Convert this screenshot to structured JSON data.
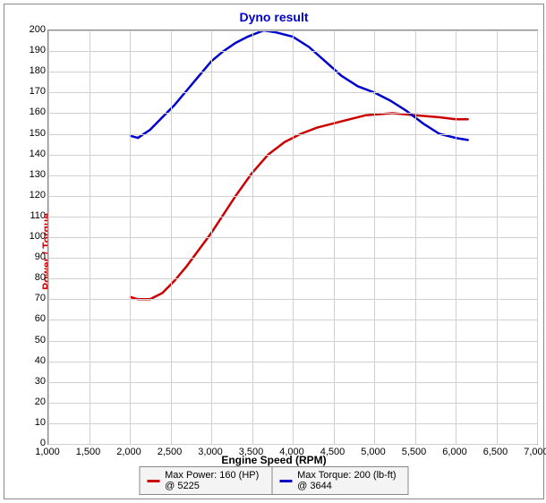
{
  "chart": {
    "type": "line",
    "title": "Dyno result",
    "title_color": "#0000cc",
    "title_fontsize": 14,
    "xlabel": "Engine Speed (RPM)",
    "xlabel_color": "#000000",
    "ylabel": "Power / Torque",
    "ylabel_color": "#cc0000",
    "label_fontsize": 12,
    "tick_fontsize": 11,
    "background_color": "#ffffff",
    "grid_color": "#d0d0d0",
    "border_color": "#888888",
    "xlim": [
      1000,
      7000
    ],
    "ylim": [
      0,
      200
    ],
    "xtick_step": 500,
    "ytick_step": 10,
    "xticks": [
      "1,000",
      "1,500",
      "2,000",
      "2,500",
      "3,000",
      "3,500",
      "4,000",
      "4,500",
      "5,000",
      "5,500",
      "6,000",
      "6,500",
      "7,000"
    ],
    "yticks": [
      "0",
      "10",
      "20",
      "30",
      "40",
      "50",
      "60",
      "70",
      "80",
      "90",
      "100",
      "110",
      "120",
      "130",
      "140",
      "150",
      "160",
      "170",
      "180",
      "190",
      "200"
    ],
    "line_width": 2.5,
    "series": [
      {
        "name": "power",
        "label": "Max Power: 160 (HP) @ 5225",
        "color": "#cc0000",
        "points": [
          [
            2010,
            71
          ],
          [
            2100,
            70
          ],
          [
            2250,
            70
          ],
          [
            2400,
            73
          ],
          [
            2550,
            79
          ],
          [
            2700,
            86
          ],
          [
            2850,
            94
          ],
          [
            3000,
            102
          ],
          [
            3150,
            111
          ],
          [
            3300,
            120
          ],
          [
            3500,
            131
          ],
          [
            3700,
            140
          ],
          [
            3900,
            146
          ],
          [
            4100,
            150
          ],
          [
            4300,
            153
          ],
          [
            4600,
            156
          ],
          [
            4900,
            159
          ],
          [
            5225,
            160
          ],
          [
            5500,
            159
          ],
          [
            5800,
            158
          ],
          [
            6000,
            157
          ],
          [
            6150,
            157
          ]
        ]
      },
      {
        "name": "torque",
        "label": "Max Torque: 200 (lb-ft) @ 3644",
        "color": "#0000cc",
        "points": [
          [
            2010,
            149
          ],
          [
            2100,
            148
          ],
          [
            2250,
            152
          ],
          [
            2400,
            158
          ],
          [
            2550,
            164
          ],
          [
            2700,
            171
          ],
          [
            2850,
            178
          ],
          [
            3000,
            185
          ],
          [
            3150,
            190
          ],
          [
            3300,
            194
          ],
          [
            3450,
            197
          ],
          [
            3644,
            200
          ],
          [
            3800,
            199
          ],
          [
            4000,
            197
          ],
          [
            4200,
            192
          ],
          [
            4400,
            185
          ],
          [
            4600,
            178
          ],
          [
            4800,
            173
          ],
          [
            5000,
            170
          ],
          [
            5200,
            166
          ],
          [
            5400,
            161
          ],
          [
            5600,
            155
          ],
          [
            5800,
            150
          ],
          [
            6000,
            148
          ],
          [
            6150,
            147
          ]
        ]
      }
    ],
    "legend": {
      "position": "bottom",
      "background": "#f4f4f4",
      "border": "#888888"
    }
  }
}
